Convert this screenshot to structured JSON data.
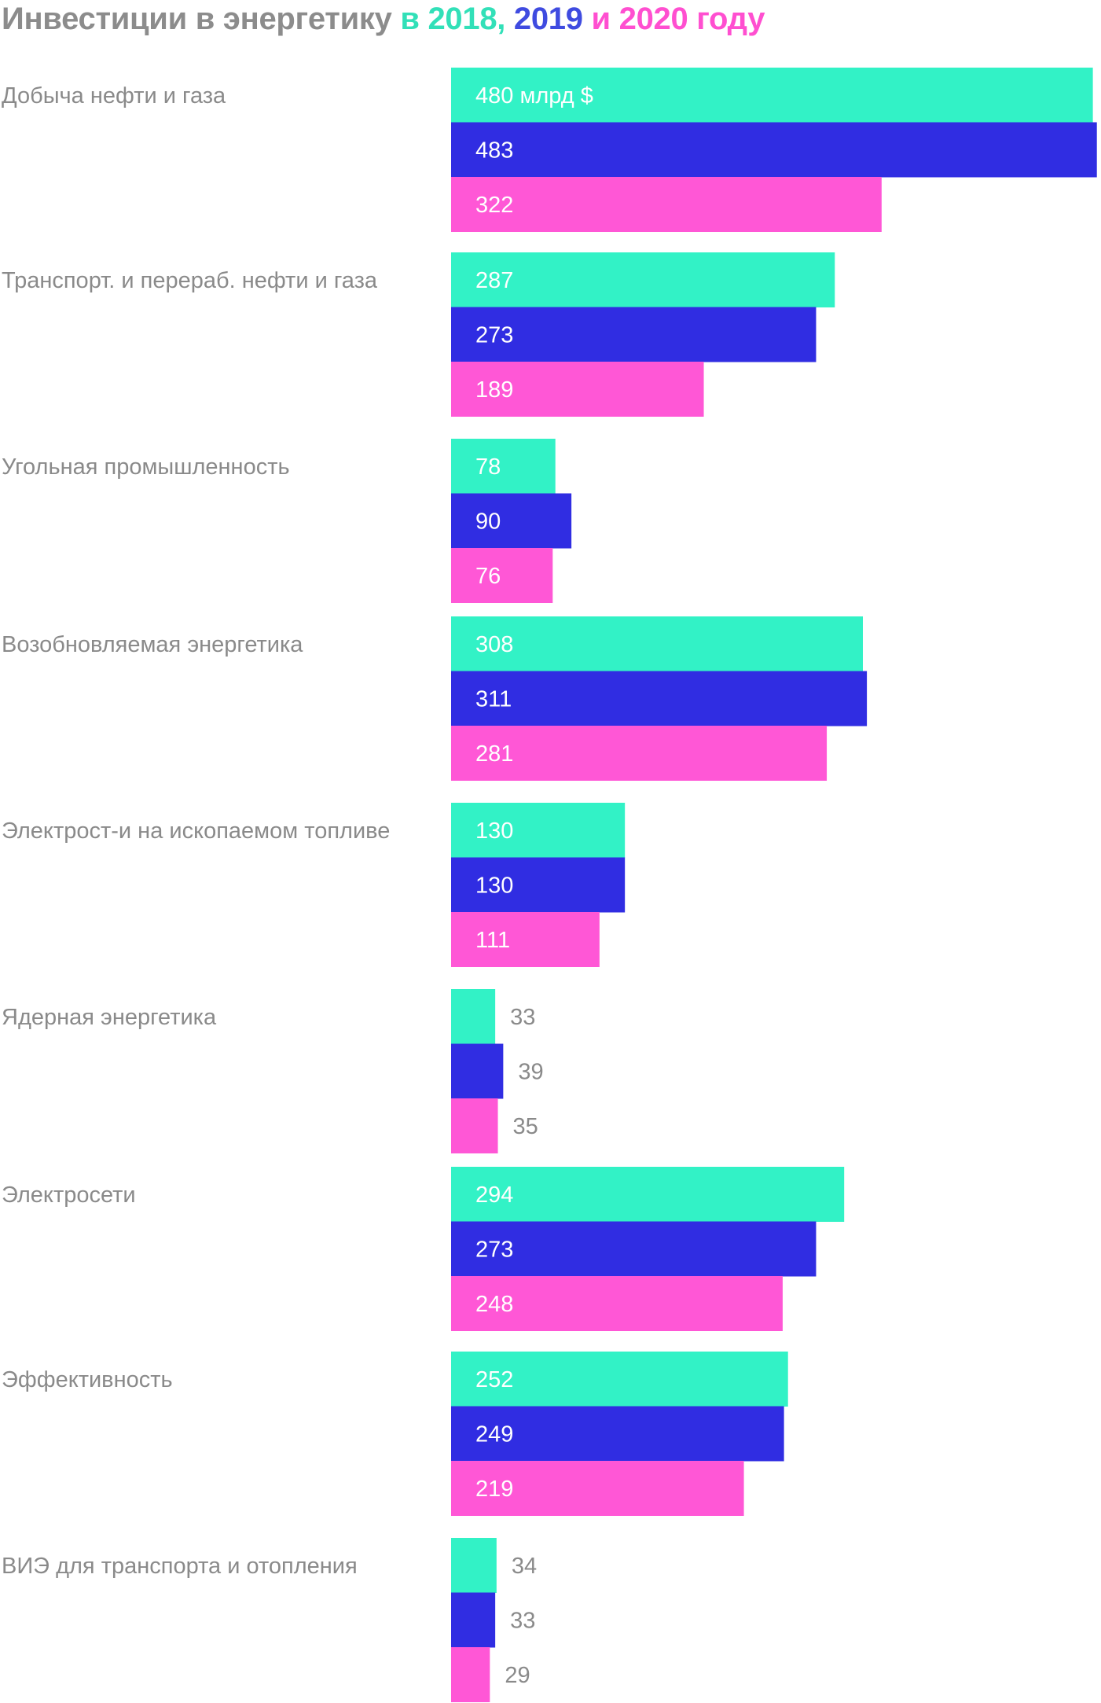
{
  "title": {
    "main": "Инвестиции в энергетику",
    "part_in": " в ",
    "part_y1": "2018, ",
    "part_y2": "2019",
    "part_and": " и ",
    "part_y3": "2020 году",
    "color_main": "#8c8c8c"
  },
  "chart_data": {
    "type": "bar",
    "orientation": "horizontal",
    "title": "Инвестиции в энергетику в 2018, 2019 и 2020 году",
    "unit": "млрд $",
    "first_value_suffix": " млрд $",
    "categories": [
      "Добыча нефти и газа",
      "Транспорт. и перераб. нефти и газа",
      "Угольная промышленность",
      "Возобновляемая энергетика",
      "Электрост-и на ископаемом топливе",
      "Ядерная энергетика",
      "Электросети",
      "Эффективность",
      "ВИЭ для транспорта и отопления"
    ],
    "series": [
      {
        "name": "2018",
        "color": "#32f2c6",
        "label_color": "#333333",
        "values": [
          480,
          287,
          78,
          308,
          130,
          33,
          294,
          252,
          34
        ]
      },
      {
        "name": "2019",
        "color": "#302de2",
        "label_color": "#ffffff",
        "values": [
          483,
          273,
          90,
          311,
          130,
          39,
          273,
          249,
          33
        ]
      },
      {
        "name": "2020",
        "color": "#ff57d6",
        "label_color": "#ffffff",
        "values": [
          322,
          189,
          76,
          281,
          111,
          35,
          248,
          219,
          29
        ]
      }
    ],
    "xlim": [
      0,
      483
    ],
    "axis_visible": false,
    "grid": false,
    "legend": "in title"
  }
}
